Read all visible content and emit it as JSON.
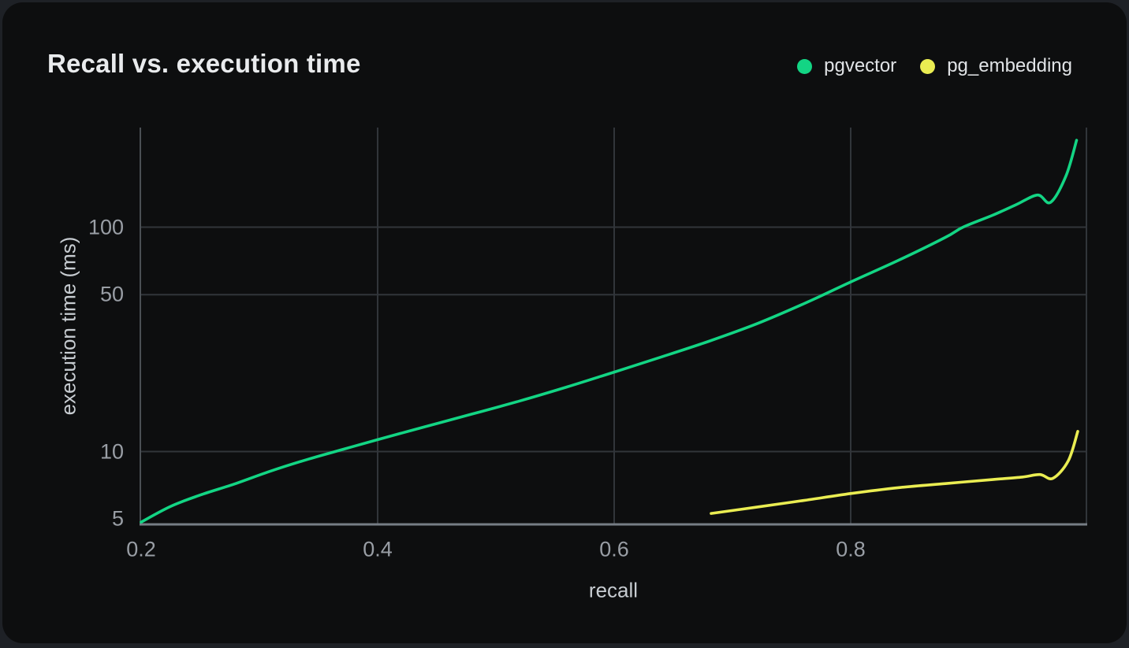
{
  "page": {
    "background_color": "#1e2126",
    "card_color": "#0d0e0f"
  },
  "header": {
    "title": "Recall vs. execution time"
  },
  "legend": {
    "position": "top-right",
    "items": [
      {
        "label": "pgvector",
        "color": "#13d584"
      },
      {
        "label": "pg_embedding",
        "color": "#eaed52"
      }
    ]
  },
  "chart_data": {
    "type": "line",
    "title": "Recall vs. execution time",
    "xlabel": "recall",
    "ylabel": "execution time (ms)",
    "x_scale": "linear",
    "y_scale": "log",
    "xlim": [
      0.2,
      1.0
    ],
    "ylim": [
      4.8,
      290
    ],
    "x_ticks": [
      0.2,
      0.4,
      0.6,
      0.8
    ],
    "y_ticks": [
      5,
      10,
      50,
      100
    ],
    "grid": true,
    "legend_position": "top-right",
    "grid_color": "#31353a",
    "axis_left_color": "#4a4f54",
    "axis_bottom_color": "#767d85",
    "tick_color": "#999ea5",
    "series": [
      {
        "name": "pgvector",
        "color": "#13d584",
        "points": [
          [
            0.2,
            4.85
          ],
          [
            0.225,
            5.7
          ],
          [
            0.25,
            6.4
          ],
          [
            0.28,
            7.2
          ],
          [
            0.31,
            8.2
          ],
          [
            0.34,
            9.2
          ],
          [
            0.37,
            10.2
          ],
          [
            0.4,
            11.3
          ],
          [
            0.44,
            12.9
          ],
          [
            0.48,
            14.7
          ],
          [
            0.52,
            16.8
          ],
          [
            0.56,
            19.4
          ],
          [
            0.6,
            22.6
          ],
          [
            0.64,
            26.4
          ],
          [
            0.68,
            31.0
          ],
          [
            0.72,
            37.0
          ],
          [
            0.76,
            45.5
          ],
          [
            0.8,
            57.0
          ],
          [
            0.84,
            71.0
          ],
          [
            0.88,
            90.0
          ],
          [
            0.895,
            100.0
          ],
          [
            0.92,
            113.0
          ],
          [
            0.94,
            126.0
          ],
          [
            0.958,
            139.0
          ],
          [
            0.969,
            129.0
          ],
          [
            0.982,
            169.0
          ],
          [
            0.991,
            244.0
          ]
        ]
      },
      {
        "name": "pg_embedding",
        "color": "#eaed52",
        "points": [
          [
            0.682,
            5.3
          ],
          [
            0.72,
            5.65
          ],
          [
            0.76,
            6.05
          ],
          [
            0.8,
            6.5
          ],
          [
            0.84,
            6.9
          ],
          [
            0.88,
            7.2
          ],
          [
            0.92,
            7.5
          ],
          [
            0.945,
            7.7
          ],
          [
            0.96,
            7.9
          ],
          [
            0.971,
            7.6
          ],
          [
            0.984,
            9.1
          ],
          [
            0.992,
            12.3
          ]
        ]
      }
    ]
  }
}
